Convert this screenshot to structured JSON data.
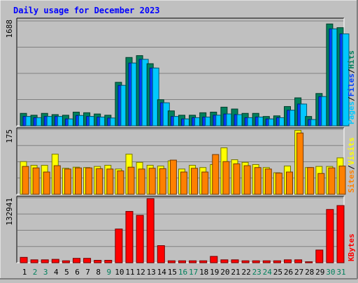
{
  "title": "Daily usage for December 2023",
  "colors": {
    "background": "#c0c0c0",
    "plot_bg": "#c0c0c0",
    "title": "#0000ff",
    "hits": "#00805c",
    "files": "#0040ff",
    "pages": "#00c8ff",
    "visits": "#ffff00",
    "sites": "#ff8000",
    "kbytes": "#ff0000",
    "weekend_label": "#00805c",
    "weekday_label": "#000000"
  },
  "chart_data": [
    {
      "type": "bar",
      "panel": "hits-files-pages",
      "ymax_label": "1688",
      "ylim": [
        0,
        1688
      ],
      "grid": true,
      "legend": [
        {
          "name": "Pages",
          "color": "#00c8ff"
        },
        {
          "name": "Files",
          "color": "#0040ff"
        },
        {
          "name": "Hits",
          "color": "#00805c"
        }
      ],
      "categories": [
        "1",
        "2",
        "3",
        "4",
        "5",
        "6",
        "7",
        "8",
        "9",
        "10",
        "11",
        "12",
        "13",
        "14",
        "15",
        "16",
        "17",
        "18",
        "19",
        "20",
        "21",
        "22",
        "23",
        "24",
        "25",
        "26",
        "27",
        "28",
        "29",
        "30",
        "31"
      ],
      "series": [
        {
          "name": "Hits",
          "values": [
            200,
            170,
            200,
            180,
            170,
            220,
            210,
            190,
            170,
            700,
            1100,
            1130,
            1000,
            420,
            240,
            170,
            170,
            210,
            220,
            300,
            270,
            200,
            200,
            150,
            160,
            310,
            450,
            150,
            520,
            1640,
            1580
          ]
        },
        {
          "name": "Files",
          "values": [
            150,
            130,
            150,
            150,
            110,
            165,
            150,
            140,
            125,
            650,
            1010,
            1070,
            930,
            370,
            150,
            110,
            130,
            140,
            170,
            190,
            180,
            130,
            140,
            110,
            130,
            250,
            350,
            100,
            470,
            1560,
            1480
          ]
        },
        {
          "name": "Pages",
          "values": [
            150,
            130,
            150,
            150,
            110,
            165,
            150,
            140,
            125,
            650,
            1010,
            1070,
            930,
            370,
            150,
            110,
            130,
            140,
            170,
            190,
            180,
            130,
            140,
            110,
            130,
            250,
            350,
            100,
            470,
            1560,
            1480
          ]
        }
      ]
    },
    {
      "type": "bar",
      "panel": "visits-sites",
      "ymax_label": "175",
      "ylim": [
        0,
        175
      ],
      "grid": true,
      "legend": [
        {
          "name": "Sites",
          "color": "#ff8000"
        },
        {
          "name": "Visits",
          "color": "#ffff00"
        }
      ],
      "categories": [
        "1",
        "2",
        "3",
        "4",
        "5",
        "6",
        "7",
        "8",
        "9",
        "10",
        "11",
        "12",
        "13",
        "14",
        "15",
        "16",
        "17",
        "18",
        "19",
        "20",
        "21",
        "22",
        "23",
        "24",
        "25",
        "26",
        "27",
        "28",
        "29",
        "30",
        "31"
      ],
      "series": [
        {
          "name": "Visits",
          "values": [
            88,
            78,
            78,
            108,
            70,
            73,
            72,
            75,
            78,
            68,
            108,
            86,
            78,
            76,
            90,
            68,
            78,
            72,
            80,
            125,
            93,
            86,
            80,
            72,
            58,
            76,
            172,
            72,
            75,
            75,
            98
          ]
        },
        {
          "name": "Sites",
          "values": [
            75,
            71,
            60,
            77,
            68,
            71,
            71,
            69,
            68,
            63,
            73,
            68,
            70,
            69,
            92,
            60,
            70,
            60,
            107,
            88,
            82,
            77,
            72,
            68,
            57,
            60,
            165,
            72,
            56,
            71,
            76
          ]
        }
      ]
    },
    {
      "type": "bar",
      "panel": "kbytes",
      "ymax_label": "132941",
      "ylim": [
        0,
        132941
      ],
      "grid": true,
      "legend": [
        {
          "name": "KBytes",
          "color": "#ff0000"
        }
      ],
      "categories": [
        "1",
        "2",
        "3",
        "4",
        "5",
        "6",
        "7",
        "8",
        "9",
        "10",
        "11",
        "12",
        "13",
        "14",
        "15",
        "16",
        "17",
        "18",
        "19",
        "20",
        "21",
        "22",
        "23",
        "24",
        "25",
        "26",
        "27",
        "28",
        "29",
        "30",
        "31"
      ],
      "series": [
        {
          "name": "KBytes",
          "values": [
            11000,
            6000,
            6000,
            7000,
            4000,
            9000,
            9000,
            5000,
            5000,
            69000,
            105000,
            97000,
            131000,
            35000,
            4000,
            4000,
            4000,
            4000,
            13000,
            6000,
            6000,
            4000,
            4000,
            4000,
            4000,
            6000,
            6000,
            2000,
            26000,
            109000,
            117000
          ]
        }
      ]
    }
  ],
  "x_labels": [
    "1",
    "2",
    "3",
    "4",
    "5",
    "6",
    "7",
    "8",
    "9",
    "10",
    "11",
    "12",
    "13",
    "14",
    "15",
    "16",
    "17",
    "18",
    "19",
    "20",
    "21",
    "22",
    "23",
    "24",
    "25",
    "26",
    "27",
    "28",
    "29",
    "30",
    "31"
  ],
  "weekend_days": [
    2,
    3,
    9,
    16,
    17,
    23,
    24,
    30,
    31
  ]
}
